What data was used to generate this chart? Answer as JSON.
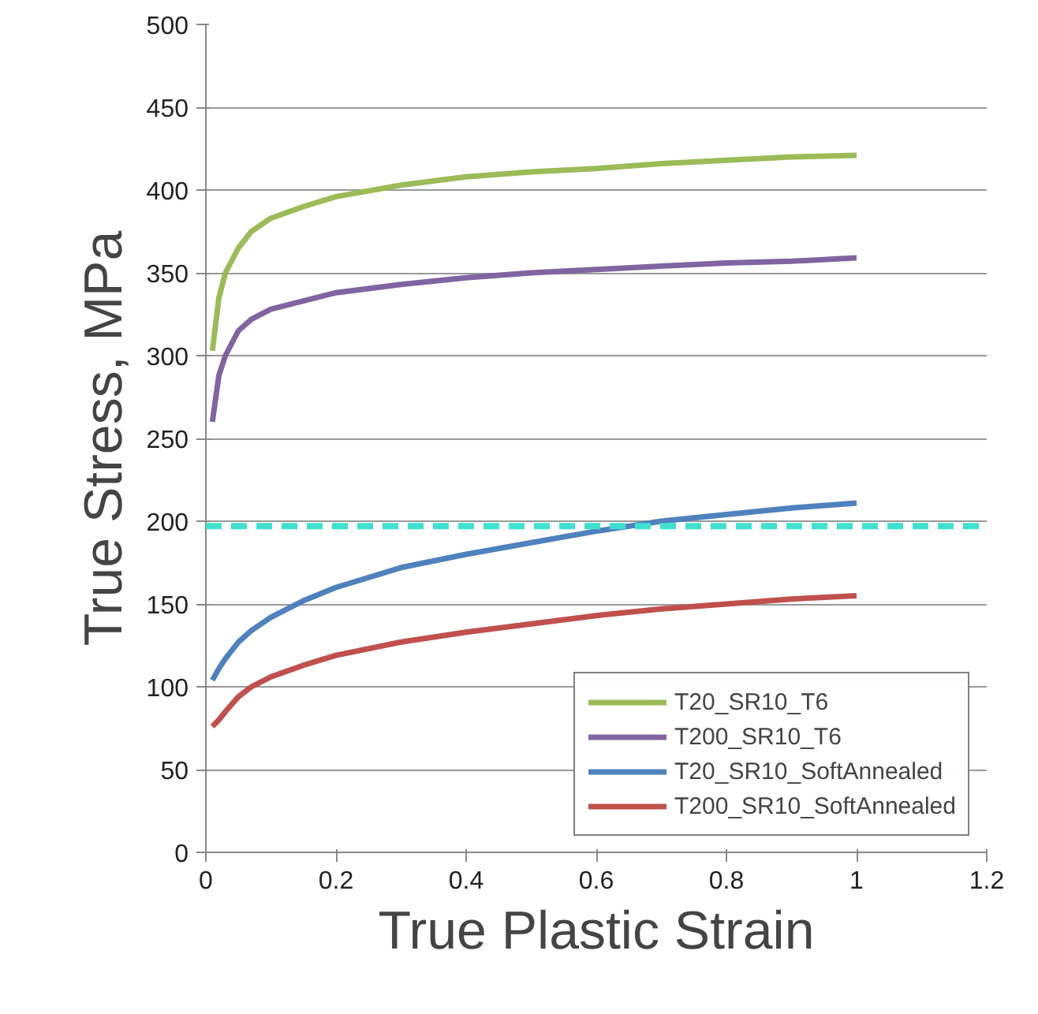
{
  "chart_data": {
    "type": "line",
    "xlabel": "True Plastic Strain",
    "ylabel": "True Stress, MPa",
    "xlim": [
      0,
      1.2
    ],
    "xticks": [
      0,
      0.2,
      0.4,
      0.6,
      0.8,
      1,
      1.2
    ],
    "ylim": [
      0,
      500
    ],
    "yticks": [
      0,
      50,
      100,
      150,
      200,
      250,
      300,
      350,
      400,
      450,
      500
    ],
    "grid": "y",
    "legend": "bottom right",
    "marker": "none",
    "line_style": "solid",
    "x": [
      0.01,
      0.02,
      0.03,
      0.05,
      0.07,
      0.1,
      0.15,
      0.2,
      0.3,
      0.4,
      0.5,
      0.6,
      0.7,
      0.8,
      0.9,
      1.0
    ],
    "series": [
      {
        "name": "T20_SR10_T6",
        "color": "#9bbb59",
        "values": [
          303,
          335,
          350,
          365,
          375,
          383,
          390,
          396,
          403,
          408,
          411,
          413,
          416,
          418,
          420,
          421
        ]
      },
      {
        "name": "T200_SR10_T6",
        "color": "#8064a2",
        "values": [
          260,
          288,
          300,
          315,
          322,
          328,
          333,
          338,
          343,
          347,
          350,
          352,
          354,
          356,
          357,
          359
        ]
      },
      {
        "name": "T20_SR10_SoftAnnealed",
        "color": "#4f81bd",
        "values": [
          104,
          111,
          117,
          127,
          134,
          142,
          152,
          160,
          172,
          180,
          187,
          194,
          200,
          204,
          208,
          211
        ]
      },
      {
        "name": "T200_SR10_SoftAnnealed",
        "color": "#c0504d",
        "values": [
          76,
          80,
          85,
          94,
          100,
          106,
          113,
          119,
          127,
          133,
          138,
          143,
          147,
          150,
          153,
          155
        ]
      }
    ],
    "ref_lines": [
      {
        "axis": "y",
        "value": 197,
        "color": "#40e0d0",
        "line_style": "dashed"
      }
    ]
  }
}
